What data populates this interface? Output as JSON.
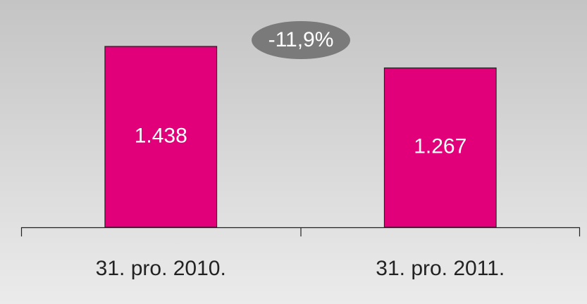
{
  "chart_data": {
    "type": "bar",
    "categories": [
      "31. pro. 2010.",
      "31. pro. 2011."
    ],
    "values": [
      1438,
      1267
    ],
    "value_labels": [
      "1.438",
      "1.267"
    ],
    "color": "#e2007a",
    "ylim": [
      0,
      1600
    ],
    "annotation": "-11,9%"
  }
}
